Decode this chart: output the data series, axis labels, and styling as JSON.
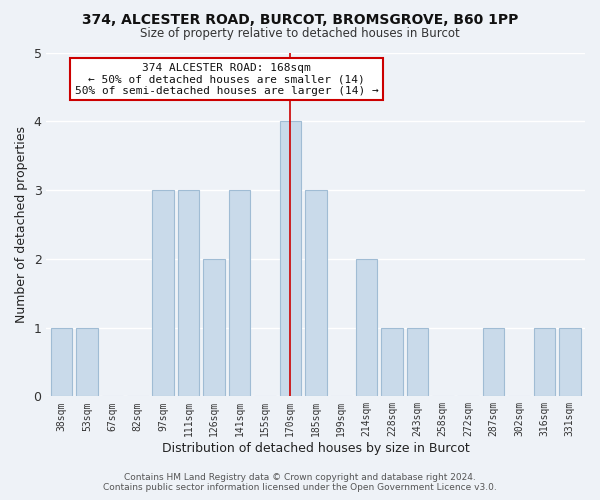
{
  "title": "374, ALCESTER ROAD, BURCOT, BROMSGROVE, B60 1PP",
  "subtitle": "Size of property relative to detached houses in Burcot",
  "xlabel": "Distribution of detached houses by size in Burcot",
  "ylabel": "Number of detached properties",
  "footer_line1": "Contains HM Land Registry data © Crown copyright and database right 2024.",
  "footer_line2": "Contains public sector information licensed under the Open Government Licence v3.0.",
  "bar_labels": [
    "38sqm",
    "53sqm",
    "67sqm",
    "82sqm",
    "97sqm",
    "111sqm",
    "126sqm",
    "141sqm",
    "155sqm",
    "170sqm",
    "185sqm",
    "199sqm",
    "214sqm",
    "228sqm",
    "243sqm",
    "258sqm",
    "272sqm",
    "287sqm",
    "302sqm",
    "316sqm",
    "331sqm"
  ],
  "bar_values": [
    1,
    1,
    0,
    0,
    3,
    3,
    2,
    3,
    0,
    4,
    3,
    0,
    2,
    1,
    1,
    0,
    0,
    1,
    0,
    1,
    1
  ],
  "bar_color": "#c9daea",
  "bar_edge_color": "#a0bcd4",
  "highlight_bar_index": 9,
  "highlight_line_color": "#cc0000",
  "ylim": [
    0,
    5
  ],
  "yticks": [
    0,
    1,
    2,
    3,
    4,
    5
  ],
  "annotation_title": "374 ALCESTER ROAD: 168sqm",
  "annotation_line1": "← 50% of detached houses are smaller (14)",
  "annotation_line2": "50% of semi-detached houses are larger (14) →",
  "annotation_box_color": "#ffffff",
  "annotation_box_edgecolor": "#cc0000",
  "bg_color": "#eef2f7",
  "grid_color": "#ffffff"
}
